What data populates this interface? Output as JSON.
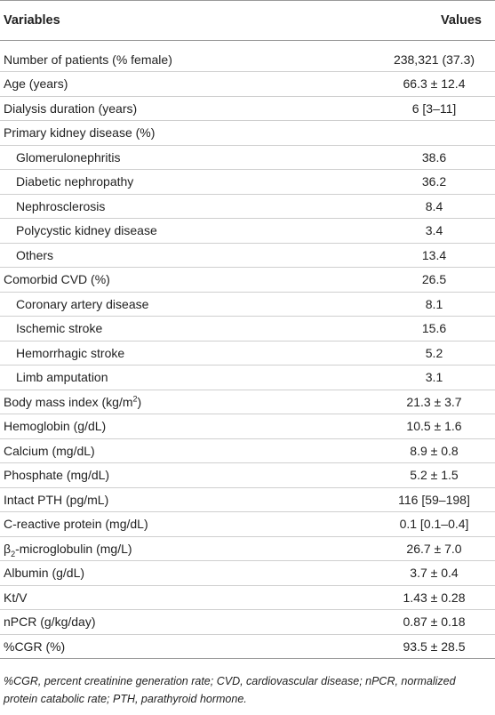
{
  "table": {
    "header": {
      "variables": "Variables",
      "values": "Values"
    },
    "rows": [
      {
        "label": "Number of patients (% female)",
        "value": "238,321 (37.3)",
        "indent": false
      },
      {
        "label": "Age (years)",
        "value": "66.3 ± 12.4",
        "indent": false
      },
      {
        "label": "Dialysis duration (years)",
        "value": "6 [3–11]",
        "indent": false
      },
      {
        "label": "Primary kidney disease (%)",
        "value": "",
        "indent": false
      },
      {
        "label": "Glomerulonephritis",
        "value": "38.6",
        "indent": true
      },
      {
        "label": "Diabetic nephropathy",
        "value": "36.2",
        "indent": true
      },
      {
        "label": "Nephrosclerosis",
        "value": "8.4",
        "indent": true
      },
      {
        "label": "Polycystic kidney disease",
        "value": "3.4",
        "indent": true
      },
      {
        "label": "Others",
        "value": "13.4",
        "indent": true
      },
      {
        "label": "Comorbid CVD (%)",
        "value": "26.5",
        "indent": false
      },
      {
        "label": "Coronary artery disease",
        "value": "8.1",
        "indent": true
      },
      {
        "label": "Ischemic stroke",
        "value": "15.6",
        "indent": true
      },
      {
        "label": "Hemorrhagic stroke",
        "value": "5.2",
        "indent": true
      },
      {
        "label": "Limb amputation",
        "value": "3.1",
        "indent": true
      },
      {
        "label": "Body mass index (kg/m",
        "sup": "2",
        "suffix": ")",
        "value": "21.3 ± 3.7",
        "indent": false
      },
      {
        "label": "Hemoglobin (g/dL)",
        "value": "10.5 ± 1.6",
        "indent": false
      },
      {
        "label": "Calcium (mg/dL)",
        "value": "8.9 ± 0.8",
        "indent": false
      },
      {
        "label": "Phosphate (mg/dL)",
        "value": "5.2 ± 1.5",
        "indent": false
      },
      {
        "label": "Intact PTH (pg/mL)",
        "value": "116 [59–198]",
        "indent": false
      },
      {
        "label": "C-reactive protein (mg/dL)",
        "value": "0.1 [0.1–0.4]",
        "indent": false
      },
      {
        "label": "β",
        "sub": "2",
        "suffix": "-microglobulin (mg/L)",
        "value": "26.7 ± 7.0",
        "indent": false
      },
      {
        "label": "Albumin (g/dL)",
        "value": "3.7 ± 0.4",
        "indent": false
      },
      {
        "label": "Kt/V",
        "value": "1.43 ± 0.28",
        "indent": false
      },
      {
        "label": "nPCR (g/kg/day)",
        "value": "0.87 ± 0.18",
        "indent": false
      },
      {
        "label": "%CGR (%)",
        "value": "93.5 ± 28.5",
        "indent": false
      }
    ]
  },
  "footnote": "%CGR, percent creatinine generation rate; CVD, cardiovascular disease; nPCR, normalized protein catabolic rate; PTH, parathyroid hormone."
}
